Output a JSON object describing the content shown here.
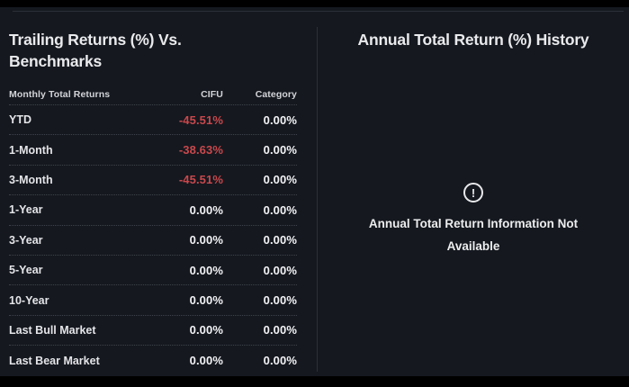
{
  "left_panel": {
    "title": "Trailing Returns (%) Vs. Benchmarks",
    "table": {
      "headers": [
        "Monthly Total Returns",
        "CIFU",
        "Category"
      ],
      "rows": [
        {
          "label": "YTD",
          "cifu": "-45.51%",
          "category": "0.00%"
        },
        {
          "label": "1-Month",
          "cifu": "-38.63%",
          "category": "0.00%"
        },
        {
          "label": "3-Month",
          "cifu": "-45.51%",
          "category": "0.00%"
        },
        {
          "label": "1-Year",
          "cifu": "0.00%",
          "category": "0.00%"
        },
        {
          "label": "3-Year",
          "cifu": "0.00%",
          "category": "0.00%"
        },
        {
          "label": "5-Year",
          "cifu": "0.00%",
          "category": "0.00%"
        },
        {
          "label": "10-Year",
          "cifu": "0.00%",
          "category": "0.00%"
        },
        {
          "label": "Last Bull Market",
          "cifu": "0.00%",
          "category": "0.00%"
        },
        {
          "label": "Last Bear Market",
          "cifu": "0.00%",
          "category": "0.00%"
        }
      ]
    }
  },
  "right_panel": {
    "title": "Annual Total Return (%) History",
    "empty_state": {
      "icon": "alert-circle-icon",
      "icon_glyph": "!",
      "message": "Annual Total Return Information Not Available"
    }
  },
  "colors": {
    "panel_background": "#15181f",
    "page_background": "#000000",
    "divider": "#2b2f37",
    "row_separator": "#3e424a",
    "title_text": "#e9eaec",
    "value_text": "#f2f3f5",
    "negative_value": "#c9484c"
  }
}
